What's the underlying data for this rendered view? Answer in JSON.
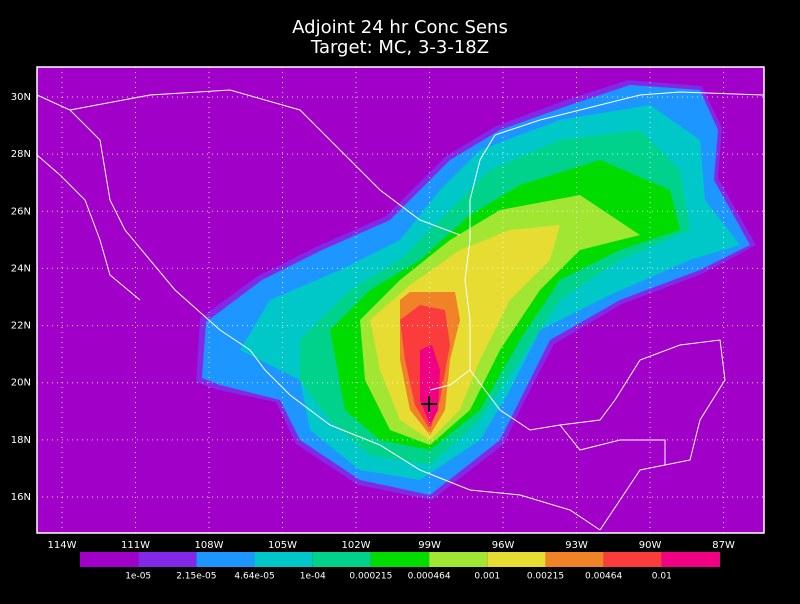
{
  "map": {
    "title": [
      "Adjoint 24 hr Conc Sens",
      "Target: MC, 3-3-18Z"
    ],
    "lon_range": [
      -115.02,
      -85.35
    ],
    "lat_range": [
      14.74,
      31.05
    ],
    "lon_ticks": [
      {
        "value": -114,
        "label": "114W"
      },
      {
        "value": -111,
        "label": "111W"
      },
      {
        "value": -108,
        "label": "108W"
      },
      {
        "value": -105,
        "label": "105W"
      },
      {
        "value": -102,
        "label": "102W"
      },
      {
        "value": -99,
        "label": "99W"
      },
      {
        "value": -96,
        "label": "96W"
      },
      {
        "value": -93,
        "label": "93W"
      },
      {
        "value": -90,
        "label": "90W"
      },
      {
        "value": -87,
        "label": "87W"
      }
    ],
    "lat_ticks": [
      {
        "value": 16,
        "label": "16N"
      },
      {
        "value": 18,
        "label": "18N"
      },
      {
        "value": 20,
        "label": "20N"
      },
      {
        "value": 22,
        "label": "22N"
      },
      {
        "value": 24,
        "label": "24N"
      },
      {
        "value": 26,
        "label": "26N"
      },
      {
        "value": 28,
        "label": "28N"
      },
      {
        "value": 30,
        "label": "30N"
      }
    ],
    "grid": true,
    "colors": [
      "#a000c8",
      "#8228e6",
      "#1e96ff",
      "#00c8c8",
      "#00d28c",
      "#00dc00",
      "#a0e632",
      "#e6dc32",
      "#f08228",
      "#fa3c3c",
      "#f00082"
    ],
    "levels": [
      {
        "value": 1e-05,
        "label": "1e-05"
      },
      {
        "value": 2.15e-05,
        "label": "2.15e-05"
      },
      {
        "value": 4.64e-05,
        "label": "4.64e-05"
      },
      {
        "value": 0.0001,
        "label": "1e-04"
      },
      {
        "value": 0.000215,
        "label": "0.000215"
      },
      {
        "value": 0.000464,
        "label": "0.000464"
      },
      {
        "value": 0.001,
        "label": "0.001"
      },
      {
        "value": 0.00215,
        "label": "0.00215"
      },
      {
        "value": 0.00464,
        "label": "0.00464"
      },
      {
        "value": 0.01,
        "label": "0.01"
      }
    ]
  }
}
